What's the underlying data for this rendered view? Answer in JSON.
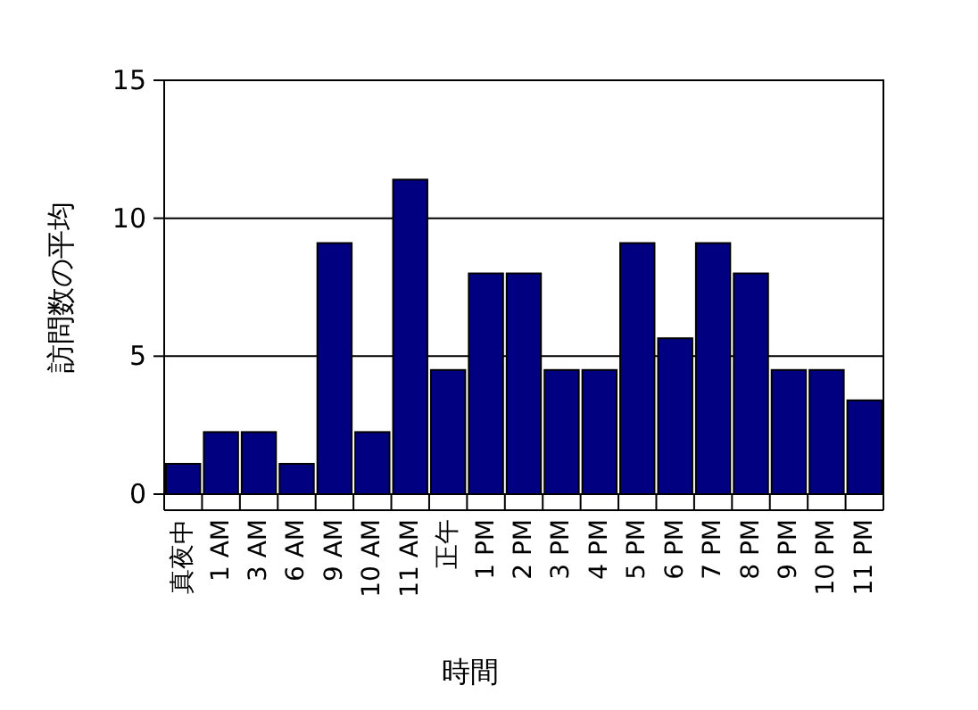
{
  "chart_data": {
    "type": "bar",
    "xlabel": "時間",
    "ylabel": "訪問数の平均",
    "categories": [
      "真夜中",
      "1 AM",
      "3 AM",
      "6 AM",
      "9 AM",
      "10 AM",
      "11 AM",
      "正午",
      "1 PM",
      "2 PM",
      "3 PM",
      "4 PM",
      "5 PM",
      "6 PM",
      "7 PM",
      "8 PM",
      "9 PM",
      "10 PM",
      "11 PM"
    ],
    "values": [
      1.1,
      2.25,
      2.25,
      1.1,
      9.1,
      2.25,
      11.4,
      4.5,
      8.0,
      8.0,
      4.5,
      4.5,
      9.1,
      5.65,
      9.1,
      8.0,
      4.5,
      4.5,
      3.4
    ],
    "color": "#000080",
    "ylim": [
      0,
      15
    ],
    "yticks": [
      0,
      5,
      10,
      15
    ],
    "grid": "y"
  }
}
